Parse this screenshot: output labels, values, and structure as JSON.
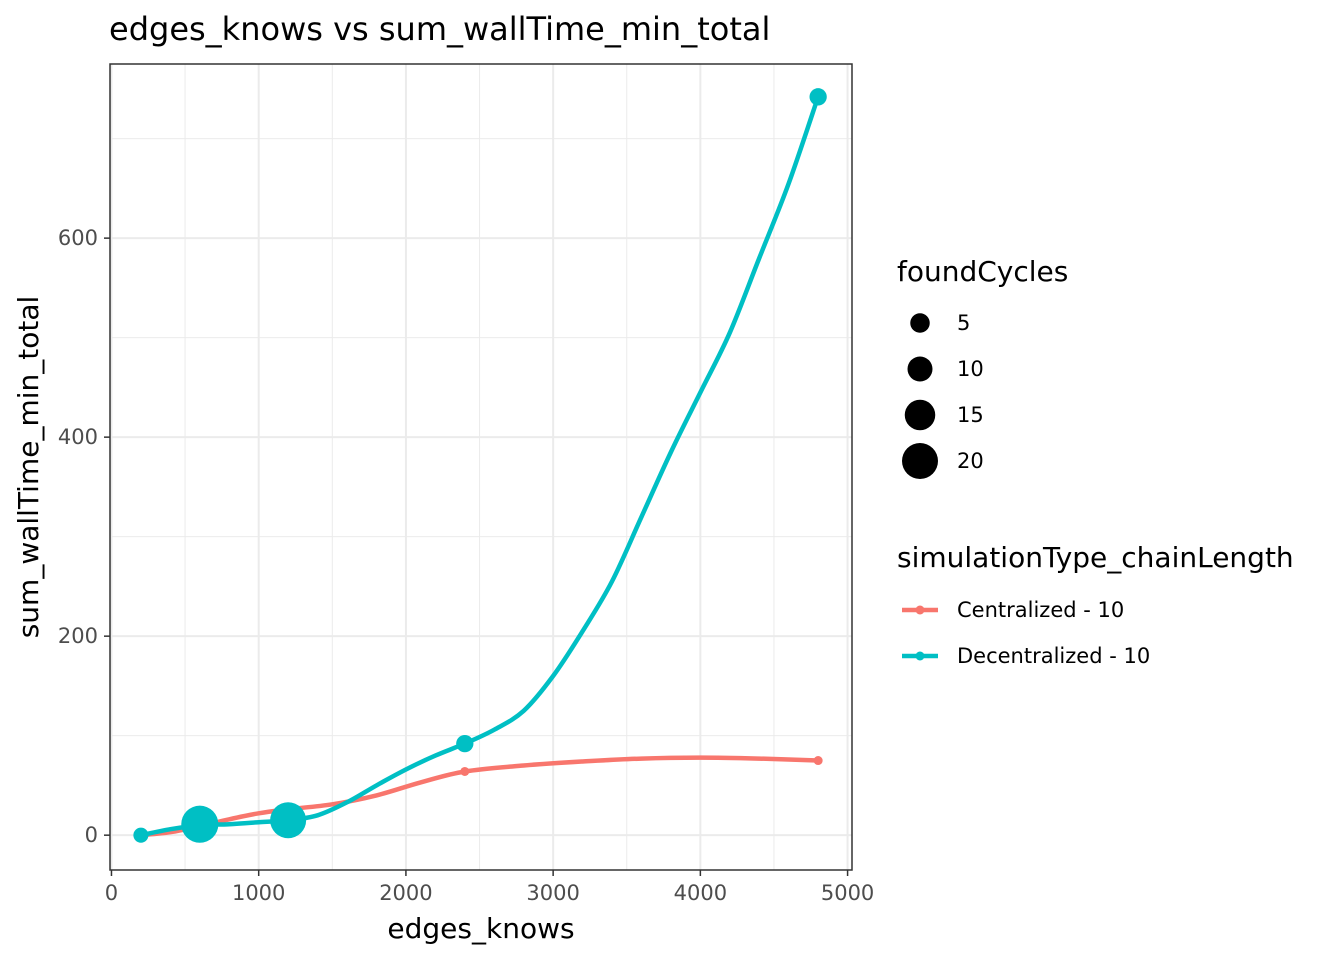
{
  "chart_data": {
    "type": "scatter",
    "title": "edges_knows  vs  sum_wallTime_min_total",
    "xlabel": "edges_knows",
    "ylabel": "sum_wallTime_min_total",
    "xlim": [
      -10,
      5030
    ],
    "ylim": [
      -35,
      775
    ],
    "x_ticks": [
      0,
      1000,
      2000,
      3000,
      4000,
      5000
    ],
    "y_ticks": [
      0,
      200,
      400,
      600
    ],
    "grid": true,
    "legend_position": "right",
    "size_legend": {
      "title": "foundCycles",
      "entries": [
        {
          "label": "5",
          "value": 5
        },
        {
          "label": "10",
          "value": 10
        },
        {
          "label": "15",
          "value": 15
        },
        {
          "label": "20",
          "value": 20
        }
      ]
    },
    "color_legend": {
      "title": "simulationType_chainLength"
    },
    "series": [
      {
        "name": "Centralized - 10",
        "color": "#F8766D",
        "points": [
          {
            "x": 200,
            "y": 0,
            "size": 0
          },
          {
            "x": 600,
            "y": 9,
            "size": 0
          },
          {
            "x": 1200,
            "y": 25,
            "size": 0
          },
          {
            "x": 2400,
            "y": 64,
            "size": 0
          },
          {
            "x": 4800,
            "y": 75,
            "size": 0
          }
        ],
        "smooth": [
          [
            200,
            0
          ],
          [
            400,
            3
          ],
          [
            600,
            9
          ],
          [
            800,
            16
          ],
          [
            1000,
            22
          ],
          [
            1200,
            26
          ],
          [
            1500,
            31
          ],
          [
            1800,
            40
          ],
          [
            2100,
            53
          ],
          [
            2400,
            64
          ],
          [
            2800,
            70
          ],
          [
            3200,
            74
          ],
          [
            3600,
            77
          ],
          [
            4000,
            78
          ],
          [
            4400,
            77
          ],
          [
            4800,
            75
          ]
        ]
      },
      {
        "name": "Decentralized - 10",
        "color": "#00BFC4",
        "points": [
          {
            "x": 200,
            "y": 0,
            "size": 1
          },
          {
            "x": 600,
            "y": 11,
            "size": 21
          },
          {
            "x": 1200,
            "y": 15,
            "size": 20
          },
          {
            "x": 2400,
            "y": 92,
            "size": 3
          },
          {
            "x": 4800,
            "y": 742,
            "size": 3
          }
        ],
        "smooth": [
          [
            200,
            0
          ],
          [
            400,
            6
          ],
          [
            600,
            10
          ],
          [
            800,
            11
          ],
          [
            1000,
            13
          ],
          [
            1200,
            15
          ],
          [
            1400,
            20
          ],
          [
            1600,
            33
          ],
          [
            1800,
            50
          ],
          [
            2000,
            66
          ],
          [
            2200,
            80
          ],
          [
            2400,
            92
          ],
          [
            2600,
            106
          ],
          [
            2800,
            125
          ],
          [
            3000,
            160
          ],
          [
            3200,
            205
          ],
          [
            3400,
            255
          ],
          [
            3600,
            320
          ],
          [
            3800,
            385
          ],
          [
            4000,
            445
          ],
          [
            4200,
            505
          ],
          [
            4400,
            580
          ],
          [
            4600,
            655
          ],
          [
            4800,
            742
          ]
        ]
      }
    ]
  }
}
